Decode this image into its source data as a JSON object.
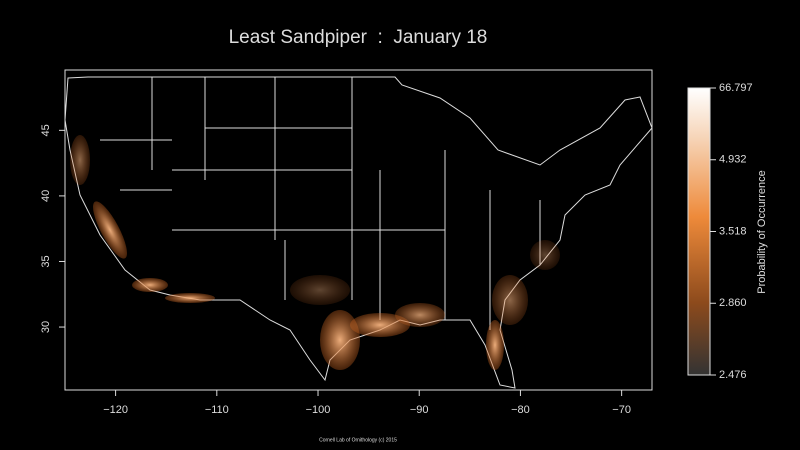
{
  "map": {
    "title": "Least Sandpiper  :  January 18",
    "xlim": [
      -125,
      -67
    ],
    "ylim": [
      25.2,
      49.6
    ],
    "xticks": [
      {
        "value": -120,
        "label": "−120"
      },
      {
        "value": -110,
        "label": "−110"
      },
      {
        "value": -100,
        "label": "−100"
      },
      {
        "value": -90,
        "label": "−90"
      },
      {
        "value": -80,
        "label": "−80"
      },
      {
        "value": -70,
        "label": "−70"
      }
    ],
    "yticks": [
      30,
      35,
      40,
      45
    ],
    "colorbar": {
      "label": "Probability of Occurrence",
      "ticks": [
        66.797,
        4.932,
        3.518,
        {
          "value": 2.86,
          "label": "2.860"
        },
        2.476
      ]
    },
    "footer": "Cornell Lab of Ornithology (c) 2015"
  }
}
